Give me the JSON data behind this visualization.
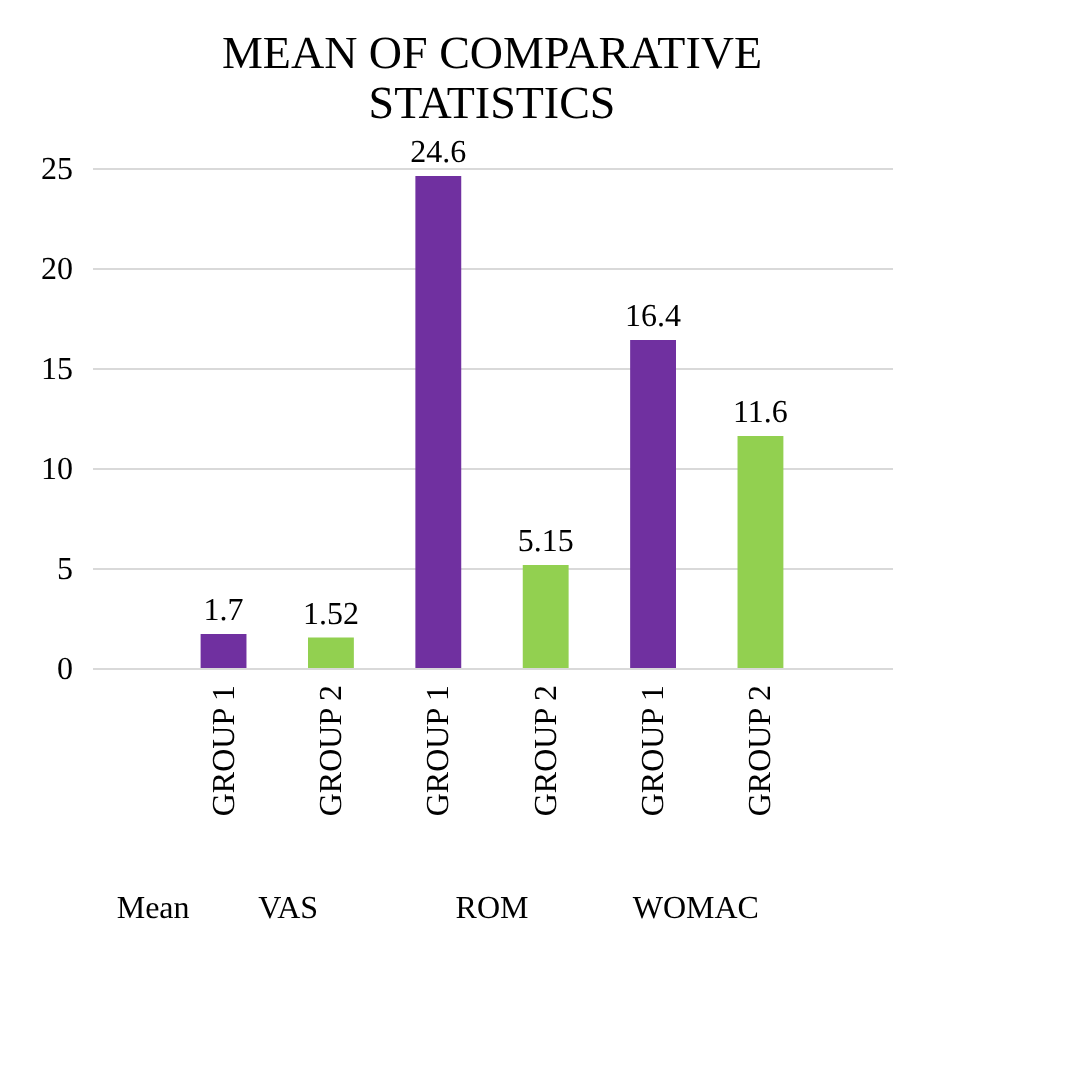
{
  "chart_data": {
    "type": "bar",
    "title": "MEAN OF COMPARATIVE STATISTICS",
    "categories": [
      "GROUP 1",
      "GROUP 2",
      "GROUP 1",
      "GROUP 2",
      "GROUP 1",
      "GROUP 2"
    ],
    "values": [
      1.7,
      1.52,
      24.6,
      5.15,
      16.4,
      11.6
    ],
    "colors": [
      "#7030a0",
      "#92d050",
      "#7030a0",
      "#92d050",
      "#7030a0",
      "#92d050"
    ],
    "ylim": [
      0,
      25
    ],
    "yticks": [
      0,
      5,
      10,
      15,
      20,
      25
    ],
    "grid": "y",
    "data_labels": true,
    "annotations": [
      "Mean",
      "VAS",
      "ROM",
      "WOMAC"
    ]
  }
}
